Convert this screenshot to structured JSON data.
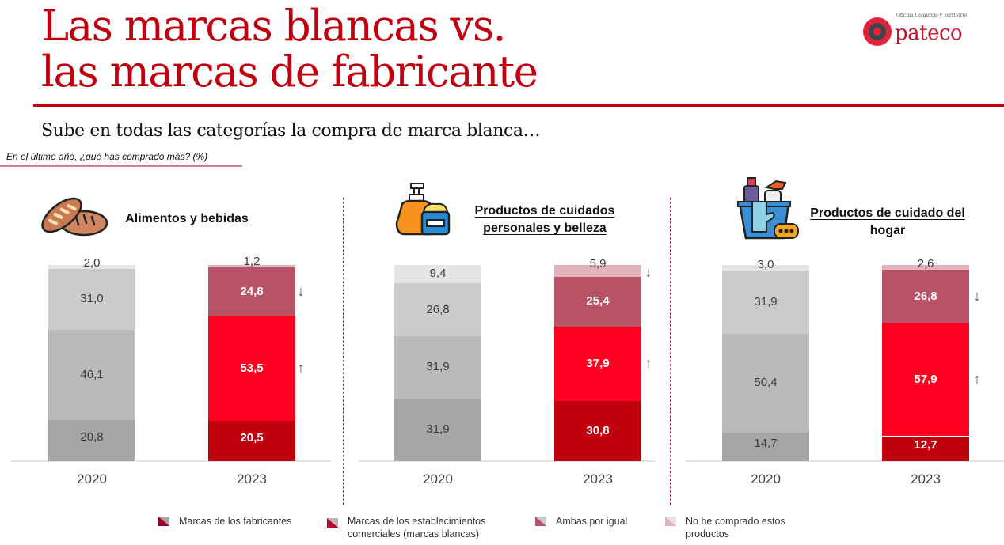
{
  "header": {
    "title_line1": "Las marcas blancas vs.",
    "title_line2": "las marcas de fabricante",
    "subtitle": "Sube en todas las categorías la compra de marca blanca…",
    "question": "En el último año, ¿qué has comprado más? (%)"
  },
  "logo": {
    "tagline": "Oficina Comercio y Territorio",
    "name": "pateco",
    "icon": "target-ring-icon"
  },
  "colors": {
    "title_red": "#c0000f",
    "fabricantes_2023": "#c0000f",
    "blancas_2023": "#ff0020",
    "ambas_2023": "#b85266",
    "no_comprado_2023": "#e3b3bd",
    "fabricantes_2020": "#a6a6a6",
    "blancas_2020": "#bababa",
    "ambas_2020": "#cbcbcb",
    "no_comprado_2020": "#e5e5e5"
  },
  "chart_data": [
    {
      "type": "bar",
      "stacked": true,
      "title": "Alimentos y bebidas",
      "icon": "bread-icon",
      "categories": [
        "2020",
        "2023"
      ],
      "series": [
        {
          "name": "Marcas de los fabricantes",
          "values": [
            20.8,
            20.5
          ],
          "labels": [
            "20,8",
            "20,5"
          ]
        },
        {
          "name": "Marcas de los establecimientos comerciales (marcas blancas)",
          "values": [
            46.1,
            53.5
          ],
          "labels": [
            "46,1",
            "53,5"
          ]
        },
        {
          "name": "Ambas por igual",
          "values": [
            31.0,
            24.8
          ],
          "labels": [
            "31,0",
            "24,8"
          ]
        },
        {
          "name": "No he comprado estos productos",
          "values": [
            2.0,
            1.2
          ],
          "labels": [
            "2,0",
            "1,2"
          ]
        }
      ],
      "trends": [
        {
          "series": "Ambas por igual",
          "direction": "down",
          "symbol": "↓"
        },
        {
          "series": "Marcas de los establecimientos comerciales (marcas blancas)",
          "direction": "up",
          "symbol": "↑"
        }
      ],
      "ylim": [
        0,
        100
      ],
      "ylabel": "%"
    },
    {
      "type": "bar",
      "stacked": true,
      "title": "Productos de cuidados personales y belleza",
      "title_lines": [
        "Productos de cuidados",
        "personales y belleza"
      ],
      "icon": "lotion-cream-icon",
      "categories": [
        "2020",
        "2023"
      ],
      "series": [
        {
          "name": "Marcas de los fabricantes",
          "values": [
            31.9,
            30.8
          ],
          "labels": [
            "31,9",
            "30,8"
          ]
        },
        {
          "name": "Marcas de los establecimientos comerciales (marcas blancas)",
          "values": [
            31.9,
            37.9
          ],
          "labels": [
            "31,9",
            "37,9"
          ]
        },
        {
          "name": "Ambas por igual",
          "values": [
            26.8,
            25.4
          ],
          "labels": [
            "26,8",
            "25,4"
          ]
        },
        {
          "name": "No he comprado estos productos",
          "values": [
            9.4,
            5.9
          ],
          "labels": [
            "9,4",
            "5,9"
          ]
        }
      ],
      "trends": [
        {
          "series": "No he comprado estos productos",
          "direction": "down",
          "symbol": "↓"
        },
        {
          "series": "Marcas de los establecimientos comerciales (marcas blancas)",
          "direction": "up",
          "symbol": "↑"
        }
      ],
      "ylim": [
        0,
        100
      ],
      "ylabel": "%"
    },
    {
      "type": "bar",
      "stacked": true,
      "title": "Productos de cuidado del hogar",
      "title_lines": [
        "Productos de cuidado del",
        "hogar"
      ],
      "icon": "cleaning-bucket-icon",
      "categories": [
        "2020",
        "2023"
      ],
      "series": [
        {
          "name": "Marcas de los fabricantes",
          "values": [
            14.7,
            12.7
          ],
          "labels": [
            "14,7",
            "12,7"
          ]
        },
        {
          "name": "Marcas de los establecimientos comerciales (marcas blancas)",
          "values": [
            50.4,
            57.9
          ],
          "labels": [
            "50,4",
            "57,9"
          ]
        },
        {
          "name": "Ambas por igual",
          "values": [
            31.9,
            26.8
          ],
          "labels": [
            "31,9",
            "26,8"
          ]
        },
        {
          "name": "No he comprado estos productos",
          "values": [
            3.0,
            2.6
          ],
          "labels": [
            "3,0",
            "2,6"
          ]
        }
      ],
      "trends": [
        {
          "series": "Ambas por igual",
          "direction": "down",
          "symbol": "↓"
        },
        {
          "series": "Marcas de los establecimientos comerciales (marcas blancas)",
          "direction": "up",
          "symbol": "↑"
        }
      ],
      "ylim": [
        0,
        100
      ],
      "ylabel": "%"
    }
  ],
  "legend": {
    "placement": "bottom",
    "items": [
      {
        "label_line1": "Marcas de los fabricantes",
        "label_line2": ""
      },
      {
        "label_line1": "Marcas de los establecimientos",
        "label_line2": "comerciales (marcas blancas)"
      },
      {
        "label_line1": "Ambas por igual",
        "label_line2": ""
      },
      {
        "label_line1": "No he comprado estos",
        "label_line2": "productos"
      }
    ]
  }
}
